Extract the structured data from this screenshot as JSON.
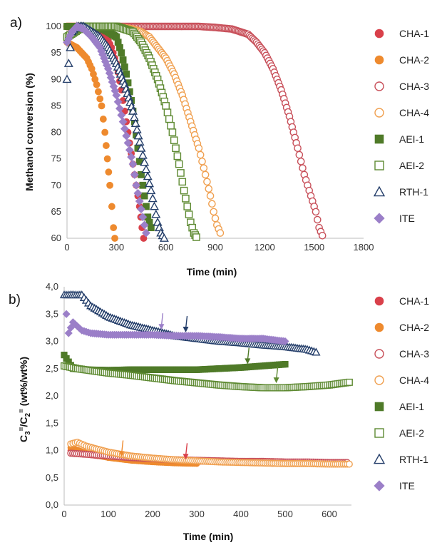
{
  "colors": {
    "CHA-1": "#d9404a",
    "CHA-2": "#ee8a2e",
    "CHA-3": "#c8505a",
    "CHA-4": "#f0a050",
    "AEI-1": "#4f7a28",
    "AEI-2": "#5e8a32",
    "RTH-1": "#243e6a",
    "ITE": "#9b7fc8"
  },
  "markers": {
    "CHA-1": "circle-filled",
    "CHA-2": "circle-filled",
    "CHA-3": "circle-open",
    "CHA-4": "circle-open",
    "AEI-1": "square-filled",
    "AEI-2": "square-open",
    "RTH-1": "triangle-open",
    "ITE": "diamond-filled"
  },
  "chart_data": [
    {
      "panel_label": "a)",
      "type": "scatter",
      "xlabel": "Time (min)",
      "ylabel": "Methanol conversion (%)",
      "xlim": [
        0,
        1800
      ],
      "ylim": [
        60,
        100
      ],
      "xticks": [
        0,
        300,
        600,
        900,
        1200,
        1500,
        1800
      ],
      "yticks": [
        60,
        65,
        70,
        75,
        80,
        85,
        90,
        95,
        100
      ],
      "legend": [
        "CHA-1",
        "CHA-2",
        "CHA-3",
        "CHA-4",
        "AEI-1",
        "AEI-2",
        "RTH-1",
        "ITE"
      ],
      "series": [
        {
          "name": "CHA-1",
          "points": [
            [
              5,
              100
            ],
            [
              60,
              100
            ],
            [
              120,
              100
            ],
            [
              180,
              99.5
            ],
            [
              240,
              98
            ],
            [
              270,
              96
            ],
            [
              300,
              93
            ],
            [
              330,
              88
            ],
            [
              360,
              82
            ],
            [
              380,
              78
            ],
            [
              400,
              74
            ],
            [
              420,
              70
            ],
            [
              440,
              66
            ],
            [
              455,
              62
            ],
            [
              465,
              60
            ]
          ]
        },
        {
          "name": "CHA-2",
          "points": [
            [
              0,
              97
            ],
            [
              30,
              96.5
            ],
            [
              60,
              96
            ],
            [
              90,
              95
            ],
            [
              120,
              94
            ],
            [
              150,
              92
            ],
            [
              180,
              89
            ],
            [
              210,
              85
            ],
            [
              230,
              80
            ],
            [
              245,
              75
            ],
            [
              260,
              70
            ],
            [
              272,
              66
            ],
            [
              282,
              62
            ],
            [
              290,
              60
            ]
          ]
        },
        {
          "name": "CHA-3",
          "points": [
            [
              0,
              100
            ],
            [
              300,
              100
            ],
            [
              600,
              100
            ],
            [
              800,
              100
            ],
            [
              900,
              99.8
            ],
            [
              1000,
              99.5
            ],
            [
              1050,
              99
            ],
            [
              1100,
              98.5
            ],
            [
              1150,
              97
            ],
            [
              1200,
              95
            ],
            [
              1250,
              92
            ],
            [
              1300,
              88
            ],
            [
              1350,
              83
            ],
            [
              1400,
              77
            ],
            [
              1440,
              72
            ],
            [
              1480,
              68
            ],
            [
              1510,
              65
            ],
            [
              1530,
              62
            ],
            [
              1550,
              60.5
            ]
          ]
        },
        {
          "name": "CHA-4",
          "points": [
            [
              0,
              100
            ],
            [
              300,
              100
            ],
            [
              400,
              99.5
            ],
            [
              450,
              99
            ],
            [
              500,
              98
            ],
            [
              550,
              96
            ],
            [
              600,
              94
            ],
            [
              650,
              91
            ],
            [
              700,
              87
            ],
            [
              750,
              82
            ],
            [
              800,
              77
            ],
            [
              840,
              72
            ],
            [
              870,
              68
            ],
            [
              890,
              65
            ],
            [
              910,
              62.5
            ],
            [
              930,
              61
            ]
          ]
        },
        {
          "name": "AEI-1",
          "points": [
            [
              0,
              100
            ],
            [
              100,
              100
            ],
            [
              200,
              99.8
            ],
            [
              250,
              99
            ],
            [
              300,
              98
            ],
            [
              330,
              95
            ],
            [
              360,
              91
            ],
            [
              390,
              86
            ],
            [
              410,
              82
            ],
            [
              430,
              77
            ],
            [
              450,
              72
            ],
            [
              470,
              68
            ],
            [
              490,
              64
            ],
            [
              510,
              62
            ]
          ]
        },
        {
          "name": "AEI-2",
          "points": [
            [
              0,
              98
            ],
            [
              100,
              100
            ],
            [
              200,
              100
            ],
            [
              300,
              100
            ],
            [
              400,
              99
            ],
            [
              450,
              97
            ],
            [
              500,
              94
            ],
            [
              550,
              90
            ],
            [
              600,
              85
            ],
            [
              640,
              80
            ],
            [
              680,
              74
            ],
            [
              710,
              69
            ],
            [
              730,
              66
            ],
            [
              750,
              63
            ],
            [
              770,
              61
            ],
            [
              785,
              60.2
            ]
          ]
        },
        {
          "name": "RTH-1",
          "points": [
            [
              0,
              90
            ],
            [
              30,
              99
            ],
            [
              60,
              100
            ],
            [
              100,
              100
            ],
            [
              150,
              99
            ],
            [
              200,
              98
            ],
            [
              250,
              96
            ],
            [
              300,
              93
            ],
            [
              350,
              89
            ],
            [
              400,
              84
            ],
            [
              450,
              77
            ],
            [
              480,
              73
            ],
            [
              510,
              69
            ],
            [
              530,
              66
            ],
            [
              550,
              63
            ],
            [
              570,
              61
            ],
            [
              590,
              60
            ]
          ]
        },
        {
          "name": "ITE",
          "points": [
            [
              0,
              97
            ],
            [
              30,
              99
            ],
            [
              60,
              100
            ],
            [
              100,
              99.5
            ],
            [
              150,
              98
            ],
            [
              200,
              96
            ],
            [
              250,
              92
            ],
            [
              300,
              87
            ],
            [
              340,
              82
            ],
            [
              370,
              78
            ],
            [
              400,
              74
            ],
            [
              420,
              70
            ],
            [
              440,
              67
            ],
            [
              460,
              64
            ],
            [
              480,
              61
            ]
          ]
        }
      ]
    },
    {
      "panel_label": "b)",
      "type": "scatter",
      "xlabel": "Time (min)",
      "ylabel_parts": [
        "C",
        "3",
        "=",
        "/C",
        "2",
        "=",
        " (wt%/wt%)"
      ],
      "xlim": [
        0,
        650
      ],
      "ylim": [
        0,
        4
      ],
      "xticks": [
        0,
        100,
        200,
        300,
        400,
        500,
        600
      ],
      "yticks": [
        "0,0",
        "0,5",
        "1,0",
        "1,5",
        "2,0",
        "2,5",
        "3,0",
        "3,5",
        "4,0"
      ],
      "legend": [
        "CHA-1",
        "CHA-2",
        "CHA-3",
        "CHA-4",
        "AEI-1",
        "AEI-2",
        "RTH-1",
        "ITE"
      ],
      "series": [
        {
          "name": "CHA-1",
          "points": [
            [
              15,
              1.0
            ],
            [
              50,
              0.93
            ],
            [
              100,
              0.88
            ],
            [
              150,
              0.84
            ],
            [
              200,
              0.82
            ],
            [
              250,
              0.81
            ],
            [
              300,
              0.8
            ],
            [
              350,
              0.8
            ],
            [
              400,
              0.79
            ],
            [
              450,
              0.79
            ],
            [
              500,
              0.78
            ],
            [
              550,
              0.78
            ],
            [
              600,
              0.78
            ],
            [
              640,
              0.78
            ]
          ]
        },
        {
          "name": "CHA-2",
          "points": [
            [
              15,
              1.05
            ],
            [
              50,
              0.95
            ],
            [
              100,
              0.87
            ],
            [
              150,
              0.82
            ],
            [
              200,
              0.79
            ],
            [
              250,
              0.77
            ],
            [
              300,
              0.76
            ]
          ]
        },
        {
          "name": "CHA-3",
          "points": [
            [
              15,
              0.95
            ],
            [
              50,
              0.93
            ],
            [
              100,
              0.9
            ],
            [
              150,
              0.87
            ],
            [
              200,
              0.85
            ],
            [
              250,
              0.83
            ],
            [
              300,
              0.82
            ],
            [
              350,
              0.81
            ],
            [
              400,
              0.8
            ],
            [
              450,
              0.8
            ],
            [
              500,
              0.79
            ],
            [
              550,
              0.79
            ],
            [
              600,
              0.78
            ],
            [
              640,
              0.78
            ]
          ]
        },
        {
          "name": "CHA-4",
          "points": [
            [
              15,
              1.12
            ],
            [
              30,
              1.15
            ],
            [
              50,
              1.08
            ],
            [
              100,
              0.97
            ],
            [
              150,
              0.9
            ],
            [
              200,
              0.86
            ],
            [
              250,
              0.83
            ],
            [
              300,
              0.81
            ],
            [
              350,
              0.79
            ],
            [
              400,
              0.78
            ],
            [
              450,
              0.77
            ],
            [
              500,
              0.76
            ],
            [
              550,
              0.76
            ],
            [
              600,
              0.75
            ],
            [
              645,
              0.75
            ]
          ]
        },
        {
          "name": "AEI-1",
          "points": [
            [
              0,
              2.75
            ],
            [
              20,
              2.5
            ],
            [
              50,
              2.48
            ],
            [
              100,
              2.47
            ],
            [
              150,
              2.48
            ],
            [
              200,
              2.48
            ],
            [
              250,
              2.48
            ],
            [
              300,
              2.48
            ],
            [
              350,
              2.5
            ],
            [
              400,
              2.52
            ],
            [
              450,
              2.55
            ],
            [
              500,
              2.58
            ]
          ]
        },
        {
          "name": "AEI-2",
          "points": [
            [
              0,
              2.55
            ],
            [
              30,
              2.5
            ],
            [
              100,
              2.42
            ],
            [
              150,
              2.38
            ],
            [
              200,
              2.33
            ],
            [
              250,
              2.28
            ],
            [
              300,
              2.24
            ],
            [
              350,
              2.2
            ],
            [
              400,
              2.17
            ],
            [
              450,
              2.15
            ],
            [
              500,
              2.15
            ],
            [
              550,
              2.17
            ],
            [
              600,
              2.2
            ],
            [
              645,
              2.25
            ]
          ]
        },
        {
          "name": "RTH-1",
          "points": [
            [
              0,
              3.85
            ],
            [
              40,
              3.85
            ],
            [
              60,
              3.65
            ],
            [
              100,
              3.45
            ],
            [
              150,
              3.3
            ],
            [
              200,
              3.2
            ],
            [
              250,
              3.1
            ],
            [
              300,
              3.05
            ],
            [
              350,
              3.0
            ],
            [
              400,
              2.97
            ],
            [
              450,
              2.93
            ],
            [
              500,
              2.9
            ],
            [
              550,
              2.85
            ],
            [
              570,
              2.8
            ]
          ]
        },
        {
          "name": "ITE",
          "points": [
            [
              5,
              3.5
            ],
            [
              10,
              3.15
            ],
            [
              20,
              3.35
            ],
            [
              40,
              3.2
            ],
            [
              60,
              3.15
            ],
            [
              100,
              3.12
            ],
            [
              150,
              3.12
            ],
            [
              200,
              3.12
            ],
            [
              250,
              3.1
            ],
            [
              300,
              3.1
            ],
            [
              350,
              3.08
            ],
            [
              400,
              3.05
            ],
            [
              450,
              3.05
            ],
            [
              500,
              3.0
            ]
          ]
        }
      ],
      "annotations": [
        {
          "type": "arrow",
          "series": "ITE",
          "x": 220,
          "y": 3.2
        },
        {
          "type": "arrow",
          "series": "RTH-1",
          "x": 275,
          "y": 3.15
        },
        {
          "type": "arrow",
          "series": "AEI-1",
          "x": 415,
          "y": 2.57
        },
        {
          "type": "arrow",
          "series": "AEI-2",
          "x": 480,
          "y": 2.22
        },
        {
          "type": "arrow",
          "series": "CHA-2",
          "x": 130,
          "y": 0.87
        },
        {
          "type": "arrow",
          "series": "CHA-1",
          "x": 275,
          "y": 0.82
        }
      ]
    }
  ]
}
